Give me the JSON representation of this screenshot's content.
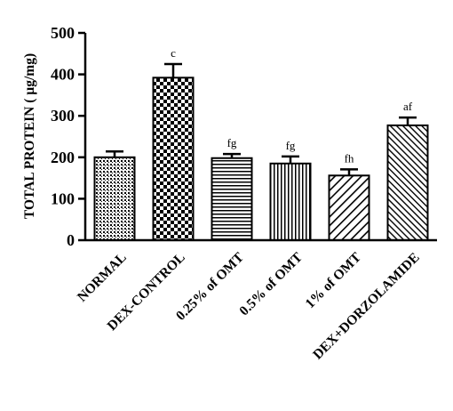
{
  "chart_data": {
    "type": "bar",
    "title": "",
    "xlabel": "",
    "ylabel": "TOTAL PROTEIN ( µg/mg)",
    "ylim": [
      0,
      500
    ],
    "yticks": [
      0,
      100,
      200,
      300,
      400,
      500
    ],
    "grid": false,
    "categories": [
      "NORMAL",
      "DEX-CONTROL",
      "0.25% of OMT",
      "0.5% of OMT",
      "1% of OMT",
      "DEX+DORZOLAMIDE"
    ],
    "values": [
      200,
      392,
      198,
      185,
      156,
      277
    ],
    "errors": [
      14,
      33,
      10,
      17,
      15,
      19
    ],
    "annotations": [
      "",
      "c",
      "fg",
      "fg",
      "fh",
      "af"
    ],
    "patterns": [
      "dots",
      "checker",
      "horizontal",
      "vertical",
      "diag-up",
      "diag-dense"
    ],
    "colors": {
      "ink": "#000000",
      "fill": "#ffffff"
    }
  }
}
